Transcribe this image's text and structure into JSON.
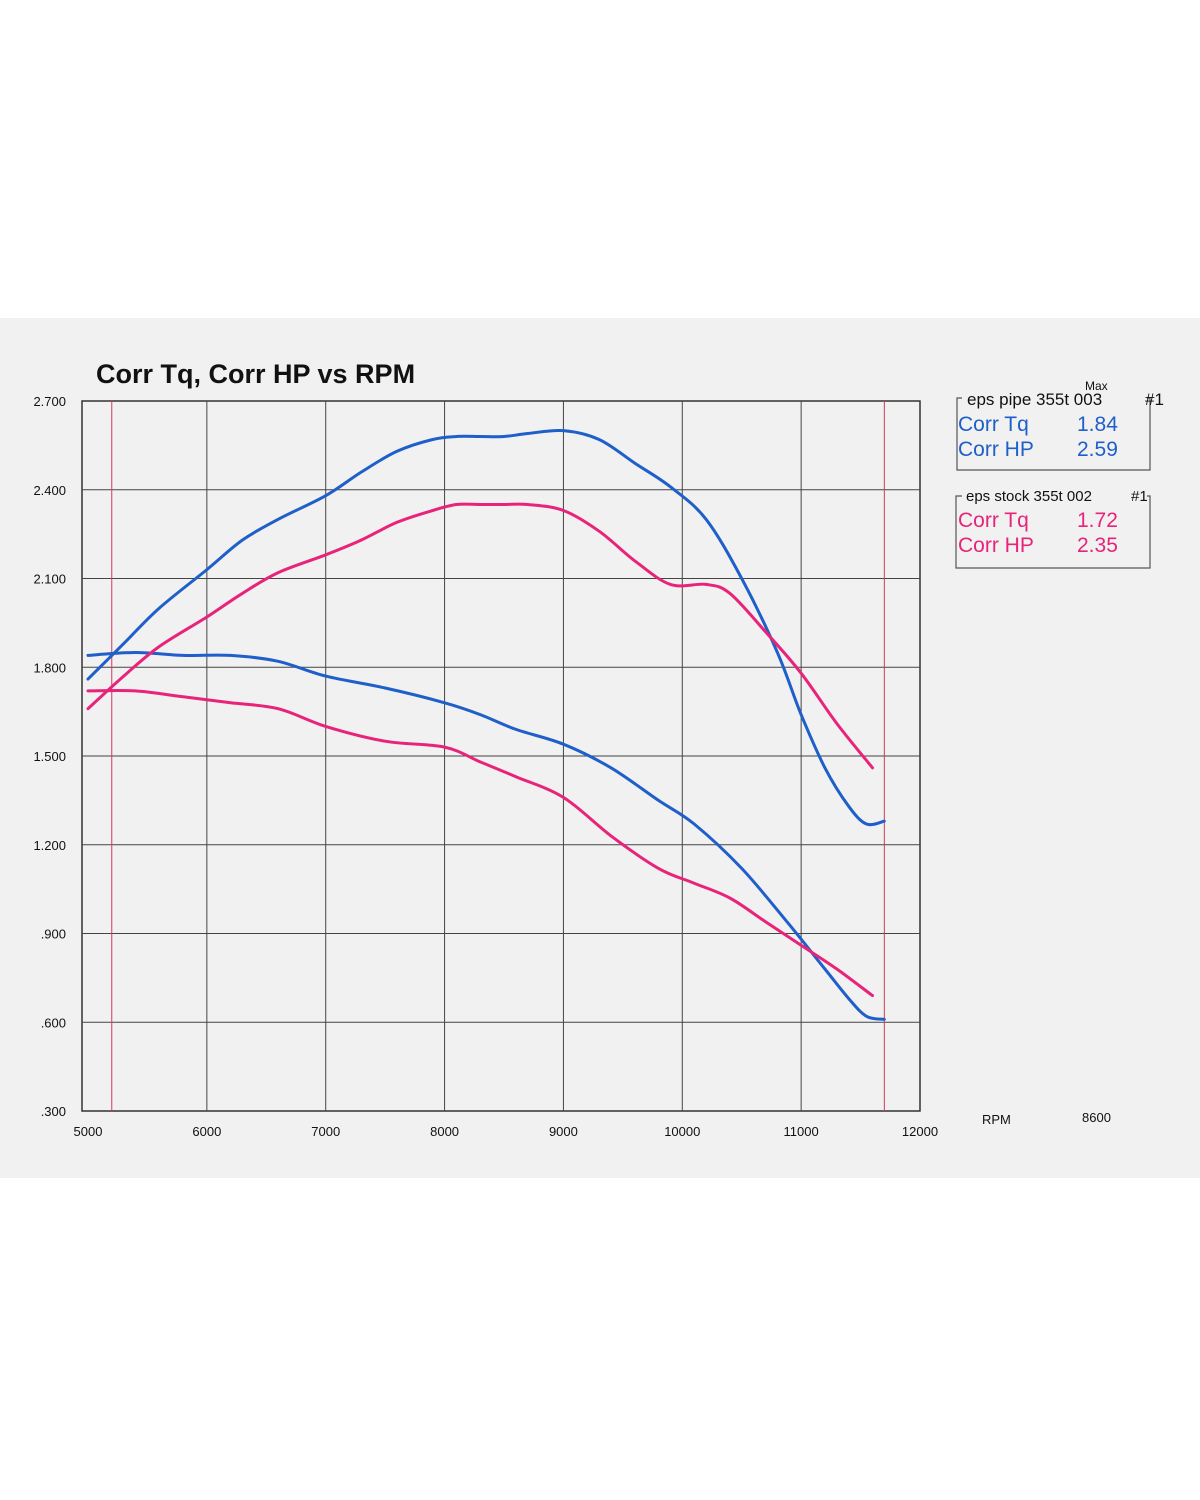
{
  "colors": {
    "pipe": "#1f5fc9",
    "stock": "#e8247a",
    "grid": "#444444",
    "marker": "#d23a5a"
  },
  "chart_data": {
    "type": "line",
    "title": "Corr Tq, Corr HP vs RPM",
    "xlabel": "RPM",
    "x_extra_label": "8600",
    "xlim": [
      5000,
      12000
    ],
    "ylim": [
      0.3,
      2.7
    ],
    "x_ticks": [
      {
        "value": 5000,
        "label": "5000"
      },
      {
        "value": 6000,
        "label": "6000"
      },
      {
        "value": 7000,
        "label": "7000"
      },
      {
        "value": 8000,
        "label": "8000"
      },
      {
        "value": 9000,
        "label": "9000"
      },
      {
        "value": 10000,
        "label": "10000"
      },
      {
        "value": 11000,
        "label": "11000"
      },
      {
        "value": 12000,
        "label": "12000"
      }
    ],
    "y_ticks": [
      {
        "value": 2.7,
        "label": "2.700"
      },
      {
        "value": 2.4,
        "label": "2.400"
      },
      {
        "value": 2.1,
        "label": "2.100"
      },
      {
        "value": 1.8,
        "label": "1.800"
      },
      {
        "value": 1.5,
        "label": "1.500"
      },
      {
        "value": 1.2,
        "label": "1.200"
      },
      {
        "value": 0.9,
        "label": ".900"
      },
      {
        "value": 0.6,
        "label": ".600"
      },
      {
        "value": 0.3,
        "label": ".300"
      }
    ],
    "markers": [
      5200,
      11700
    ],
    "series": [
      {
        "name": "eps pipe Corr HP",
        "color_key": "pipe",
        "x": [
          5000,
          5300,
          5600,
          6000,
          6300,
          6600,
          7000,
          7300,
          7600,
          7900,
          8100,
          8300,
          8500,
          8700,
          9000,
          9300,
          9600,
          9900,
          10200,
          10500,
          10800,
          11000,
          11200,
          11400,
          11550,
          11700
        ],
        "y": [
          1.76,
          1.88,
          2.0,
          2.13,
          2.23,
          2.3,
          2.38,
          2.46,
          2.53,
          2.57,
          2.58,
          2.58,
          2.58,
          2.59,
          2.6,
          2.57,
          2.49,
          2.41,
          2.3,
          2.1,
          1.85,
          1.64,
          1.46,
          1.33,
          1.27,
          1.28
        ]
      },
      {
        "name": "eps pipe Corr Tq",
        "color_key": "pipe",
        "x": [
          5000,
          5400,
          5800,
          6200,
          6600,
          7000,
          7500,
          8000,
          8300,
          8600,
          9000,
          9400,
          9800,
          10100,
          10500,
          10900,
          11200,
          11400,
          11550,
          11700
        ],
        "y": [
          1.84,
          1.85,
          1.84,
          1.84,
          1.82,
          1.77,
          1.73,
          1.68,
          1.64,
          1.59,
          1.54,
          1.46,
          1.35,
          1.27,
          1.12,
          0.93,
          0.78,
          0.68,
          0.62,
          0.61
        ]
      },
      {
        "name": "eps stock Corr HP",
        "color_key": "stock",
        "x": [
          5000,
          5300,
          5600,
          6000,
          6300,
          6600,
          7000,
          7300,
          7600,
          7900,
          8100,
          8300,
          8500,
          8700,
          9000,
          9300,
          9600,
          9900,
          10200,
          10400,
          10700,
          11000,
          11300,
          11600
        ],
        "y": [
          1.66,
          1.77,
          1.87,
          1.97,
          2.05,
          2.12,
          2.18,
          2.23,
          2.29,
          2.33,
          2.35,
          2.35,
          2.35,
          2.35,
          2.33,
          2.26,
          2.16,
          2.08,
          2.08,
          2.05,
          1.92,
          1.78,
          1.61,
          1.46
        ]
      },
      {
        "name": "eps stock Corr Tq",
        "color_key": "stock",
        "x": [
          5000,
          5400,
          5800,
          6200,
          6600,
          7000,
          7500,
          8000,
          8300,
          8600,
          9000,
          9400,
          9800,
          10100,
          10400,
          10700,
          11000,
          11300,
          11600
        ],
        "y": [
          1.72,
          1.72,
          1.7,
          1.68,
          1.66,
          1.6,
          1.55,
          1.53,
          1.48,
          1.43,
          1.36,
          1.23,
          1.12,
          1.07,
          1.02,
          0.94,
          0.86,
          0.78,
          0.69
        ]
      }
    ]
  },
  "legend": [
    {
      "header": "eps pipe 355t 003",
      "max_label": "Max",
      "run": "#1",
      "color_key": "pipe",
      "rows": [
        {
          "label": "Corr Tq",
          "value": "1.84"
        },
        {
          "label": "Corr HP",
          "value": "2.59"
        }
      ]
    },
    {
      "header": "eps stock 355t 002",
      "run": "#1",
      "color_key": "stock",
      "rows": [
        {
          "label": "Corr Tq",
          "value": "1.72"
        },
        {
          "label": "Corr HP",
          "value": "2.35"
        }
      ]
    }
  ]
}
